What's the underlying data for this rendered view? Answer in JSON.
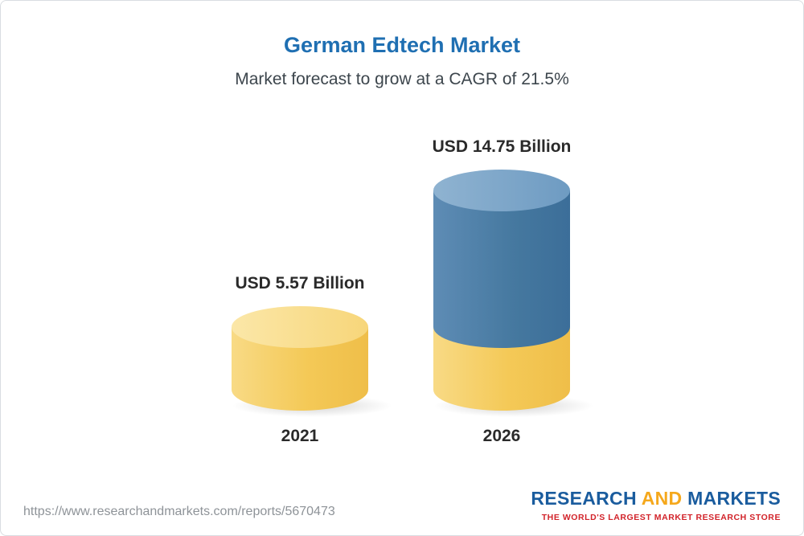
{
  "page": {
    "title": "German Edtech Market",
    "subtitle": "Market forecast to grow at a CAGR of 21.5%"
  },
  "chart_data": {
    "type": "bar",
    "variant": "3d-cylinder",
    "title": "German Edtech Market",
    "subtitle": "Market forecast to grow at a CAGR of 21.5%",
    "unit": "USD Billion",
    "cagr_percent": 21.5,
    "categories": [
      "2021",
      "2026"
    ],
    "values": [
      5.57,
      14.75
    ],
    "ylim": [
      0,
      16
    ],
    "grid": false,
    "legend": "none",
    "bars": [
      {
        "year": "2021",
        "value": 5.57,
        "value_label": "USD 5.57 Billion",
        "cap_color": "#f7d67a",
        "body_color": "#f4c957"
      },
      {
        "year": "2026",
        "value": 14.75,
        "value_label": "USD 14.75 Billion",
        "cap_color": "#7ea6c8",
        "segments": [
          {
            "name": "growth-portion",
            "color": "#45789f",
            "value": 9.18
          },
          {
            "name": "base-portion",
            "color": "#f4c957",
            "value": 5.57
          }
        ]
      }
    ]
  },
  "footer": {
    "url": "https://www.researchandmarkets.com/reports/5670473",
    "logo": {
      "part1": "RESEARCH",
      "part2": "AND",
      "part3": "MARKETS",
      "tagline": "THE WORLD'S LARGEST MARKET RESEARCH STORE"
    }
  },
  "colors": {
    "title": "#1f6fb2",
    "subtitle": "#3d464d",
    "label_text": "#2a2a2a",
    "url_text": "#8e9398",
    "logo_blue": "#1a5c9e",
    "logo_yellow": "#f5a81c",
    "logo_tagline_red": "#d2232a",
    "bar_yellow": "#f4c957",
    "bar_blue": "#45789f"
  }
}
